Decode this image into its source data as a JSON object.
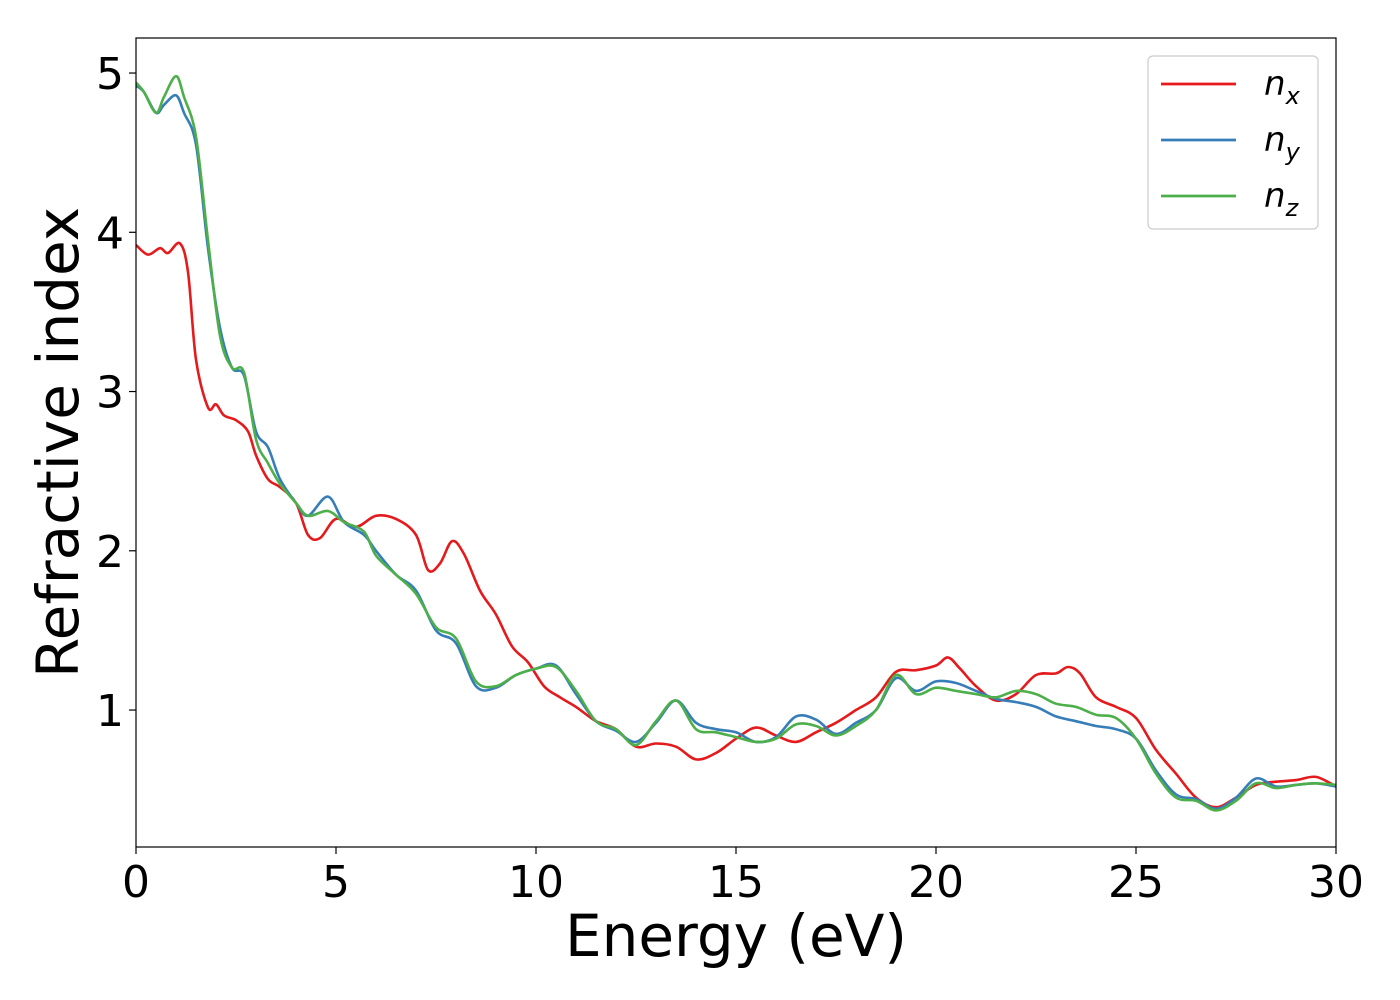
{
  "chart_data": {
    "type": "line",
    "xlabel": "Energy (eV)",
    "ylabel": "Refractive index",
    "xlim": [
      0,
      30
    ],
    "ylim": [
      0.14,
      5.22
    ],
    "xticks": [
      0,
      5,
      10,
      15,
      20,
      25,
      30
    ],
    "xtick_labels": [
      "0",
      "5",
      "10",
      "15",
      "20",
      "25",
      "30"
    ],
    "yticks": [
      1,
      2,
      3,
      4,
      5
    ],
    "ytick_labels": [
      "1",
      "2",
      "3",
      "4",
      "5"
    ],
    "grid": false,
    "legend_position": "top-right",
    "series": [
      {
        "name": "n_x",
        "name_base": "n",
        "name_sub": "x",
        "color": "#e41a1c",
        "x": [
          0,
          0.3,
          0.6,
          0.8,
          1.1,
          1.3,
          1.5,
          1.8,
          2.0,
          2.2,
          2.5,
          2.8,
          3.0,
          3.3,
          3.6,
          4.0,
          4.3,
          4.6,
          5.0,
          5.5,
          6.0,
          6.5,
          7.0,
          7.3,
          7.6,
          7.9,
          8.2,
          8.6,
          9.0,
          9.4,
          9.8,
          10.2,
          10.6,
          11.0,
          11.5,
          12.0,
          12.5,
          13.0,
          13.5,
          14.0,
          14.5,
          15.0,
          15.5,
          16.0,
          16.5,
          17.0,
          17.5,
          18.0,
          18.5,
          19.0,
          19.5,
          20.0,
          20.3,
          20.6,
          21.0,
          21.5,
          22.0,
          22.5,
          23.0,
          23.3,
          23.6,
          24.0,
          24.5,
          25.0,
          25.5,
          26.0,
          26.5,
          27.0,
          27.5,
          28.0,
          28.5,
          29.0,
          29.5,
          30.0
        ],
        "y": [
          3.92,
          3.86,
          3.9,
          3.87,
          3.93,
          3.75,
          3.2,
          2.9,
          2.92,
          2.85,
          2.82,
          2.75,
          2.6,
          2.45,
          2.4,
          2.3,
          2.1,
          2.08,
          2.2,
          2.15,
          2.22,
          2.2,
          2.1,
          1.88,
          1.92,
          2.06,
          1.98,
          1.75,
          1.6,
          1.4,
          1.3,
          1.15,
          1.08,
          1.02,
          0.93,
          0.88,
          0.77,
          0.79,
          0.77,
          0.69,
          0.73,
          0.82,
          0.89,
          0.84,
          0.8,
          0.86,
          0.92,
          1.0,
          1.08,
          1.24,
          1.25,
          1.28,
          1.33,
          1.26,
          1.15,
          1.06,
          1.1,
          1.22,
          1.23,
          1.27,
          1.23,
          1.08,
          1.02,
          0.95,
          0.75,
          0.6,
          0.45,
          0.39,
          0.45,
          0.53,
          0.55,
          0.56,
          0.58,
          0.52
        ]
      },
      {
        "name": "n_y",
        "name_base": "n",
        "name_sub": "y",
        "color": "#377eb8",
        "x": [
          0,
          0.2,
          0.5,
          0.7,
          1.0,
          1.2,
          1.5,
          1.8,
          2.1,
          2.4,
          2.7,
          3.0,
          3.3,
          3.6,
          4.0,
          4.3,
          4.8,
          5.2,
          5.7,
          6.0,
          6.5,
          7.0,
          7.5,
          8.0,
          8.5,
          9.0,
          9.5,
          10.0,
          10.5,
          11.0,
          11.5,
          12.0,
          12.5,
          13.0,
          13.5,
          14.0,
          14.5,
          15.0,
          15.5,
          16.0,
          16.5,
          17.0,
          17.5,
          18.0,
          18.5,
          19.0,
          19.5,
          20.0,
          20.5,
          21.0,
          21.5,
          22.0,
          22.5,
          23.0,
          23.5,
          24.0,
          24.5,
          25.0,
          25.5,
          26.0,
          26.5,
          27.0,
          27.5,
          28.0,
          28.5,
          29.0,
          29.5,
          30.0
        ],
        "y": [
          4.92,
          4.88,
          4.75,
          4.8,
          4.86,
          4.75,
          4.55,
          3.9,
          3.4,
          3.15,
          3.1,
          2.75,
          2.65,
          2.45,
          2.3,
          2.22,
          2.34,
          2.18,
          2.1,
          2.0,
          1.85,
          1.75,
          1.5,
          1.42,
          1.15,
          1.14,
          1.22,
          1.26,
          1.28,
          1.1,
          0.93,
          0.87,
          0.8,
          0.92,
          1.06,
          0.92,
          0.88,
          0.86,
          0.8,
          0.83,
          0.96,
          0.94,
          0.85,
          0.92,
          1.0,
          1.2,
          1.12,
          1.18,
          1.17,
          1.12,
          1.07,
          1.05,
          1.02,
          0.96,
          0.93,
          0.9,
          0.88,
          0.82,
          0.62,
          0.47,
          0.44,
          0.38,
          0.45,
          0.57,
          0.52,
          0.53,
          0.54,
          0.52
        ]
      },
      {
        "name": "n_z",
        "name_base": "n",
        "name_sub": "z",
        "color": "#4daf4a",
        "x": [
          0,
          0.2,
          0.5,
          0.7,
          1.0,
          1.2,
          1.5,
          1.8,
          2.1,
          2.4,
          2.7,
          3.0,
          3.3,
          3.6,
          4.0,
          4.3,
          4.8,
          5.2,
          5.7,
          6.0,
          6.5,
          7.0,
          7.5,
          8.0,
          8.5,
          9.0,
          9.5,
          10.0,
          10.5,
          11.0,
          11.5,
          12.0,
          12.5,
          13.0,
          13.5,
          14.0,
          14.5,
          15.0,
          15.5,
          16.0,
          16.5,
          17.0,
          17.5,
          18.0,
          18.5,
          19.0,
          19.5,
          20.0,
          20.5,
          21.0,
          21.5,
          22.0,
          22.5,
          23.0,
          23.5,
          24.0,
          24.5,
          25.0,
          25.5,
          26.0,
          26.5,
          27.0,
          27.5,
          28.0,
          28.5,
          29.0,
          29.5,
          30.0
        ],
        "y": [
          4.94,
          4.88,
          4.75,
          4.85,
          4.98,
          4.85,
          4.6,
          3.95,
          3.35,
          3.15,
          3.12,
          2.7,
          2.55,
          2.42,
          2.3,
          2.22,
          2.25,
          2.18,
          2.12,
          1.97,
          1.85,
          1.73,
          1.52,
          1.45,
          1.18,
          1.15,
          1.22,
          1.26,
          1.27,
          1.12,
          0.93,
          0.88,
          0.78,
          0.93,
          1.06,
          0.88,
          0.86,
          0.83,
          0.8,
          0.82,
          0.91,
          0.9,
          0.84,
          0.9,
          1.0,
          1.22,
          1.1,
          1.14,
          1.12,
          1.1,
          1.08,
          1.12,
          1.1,
          1.04,
          1.02,
          0.97,
          0.95,
          0.82,
          0.6,
          0.45,
          0.43,
          0.37,
          0.43,
          0.54,
          0.51,
          0.53,
          0.54,
          0.53
        ]
      }
    ]
  }
}
